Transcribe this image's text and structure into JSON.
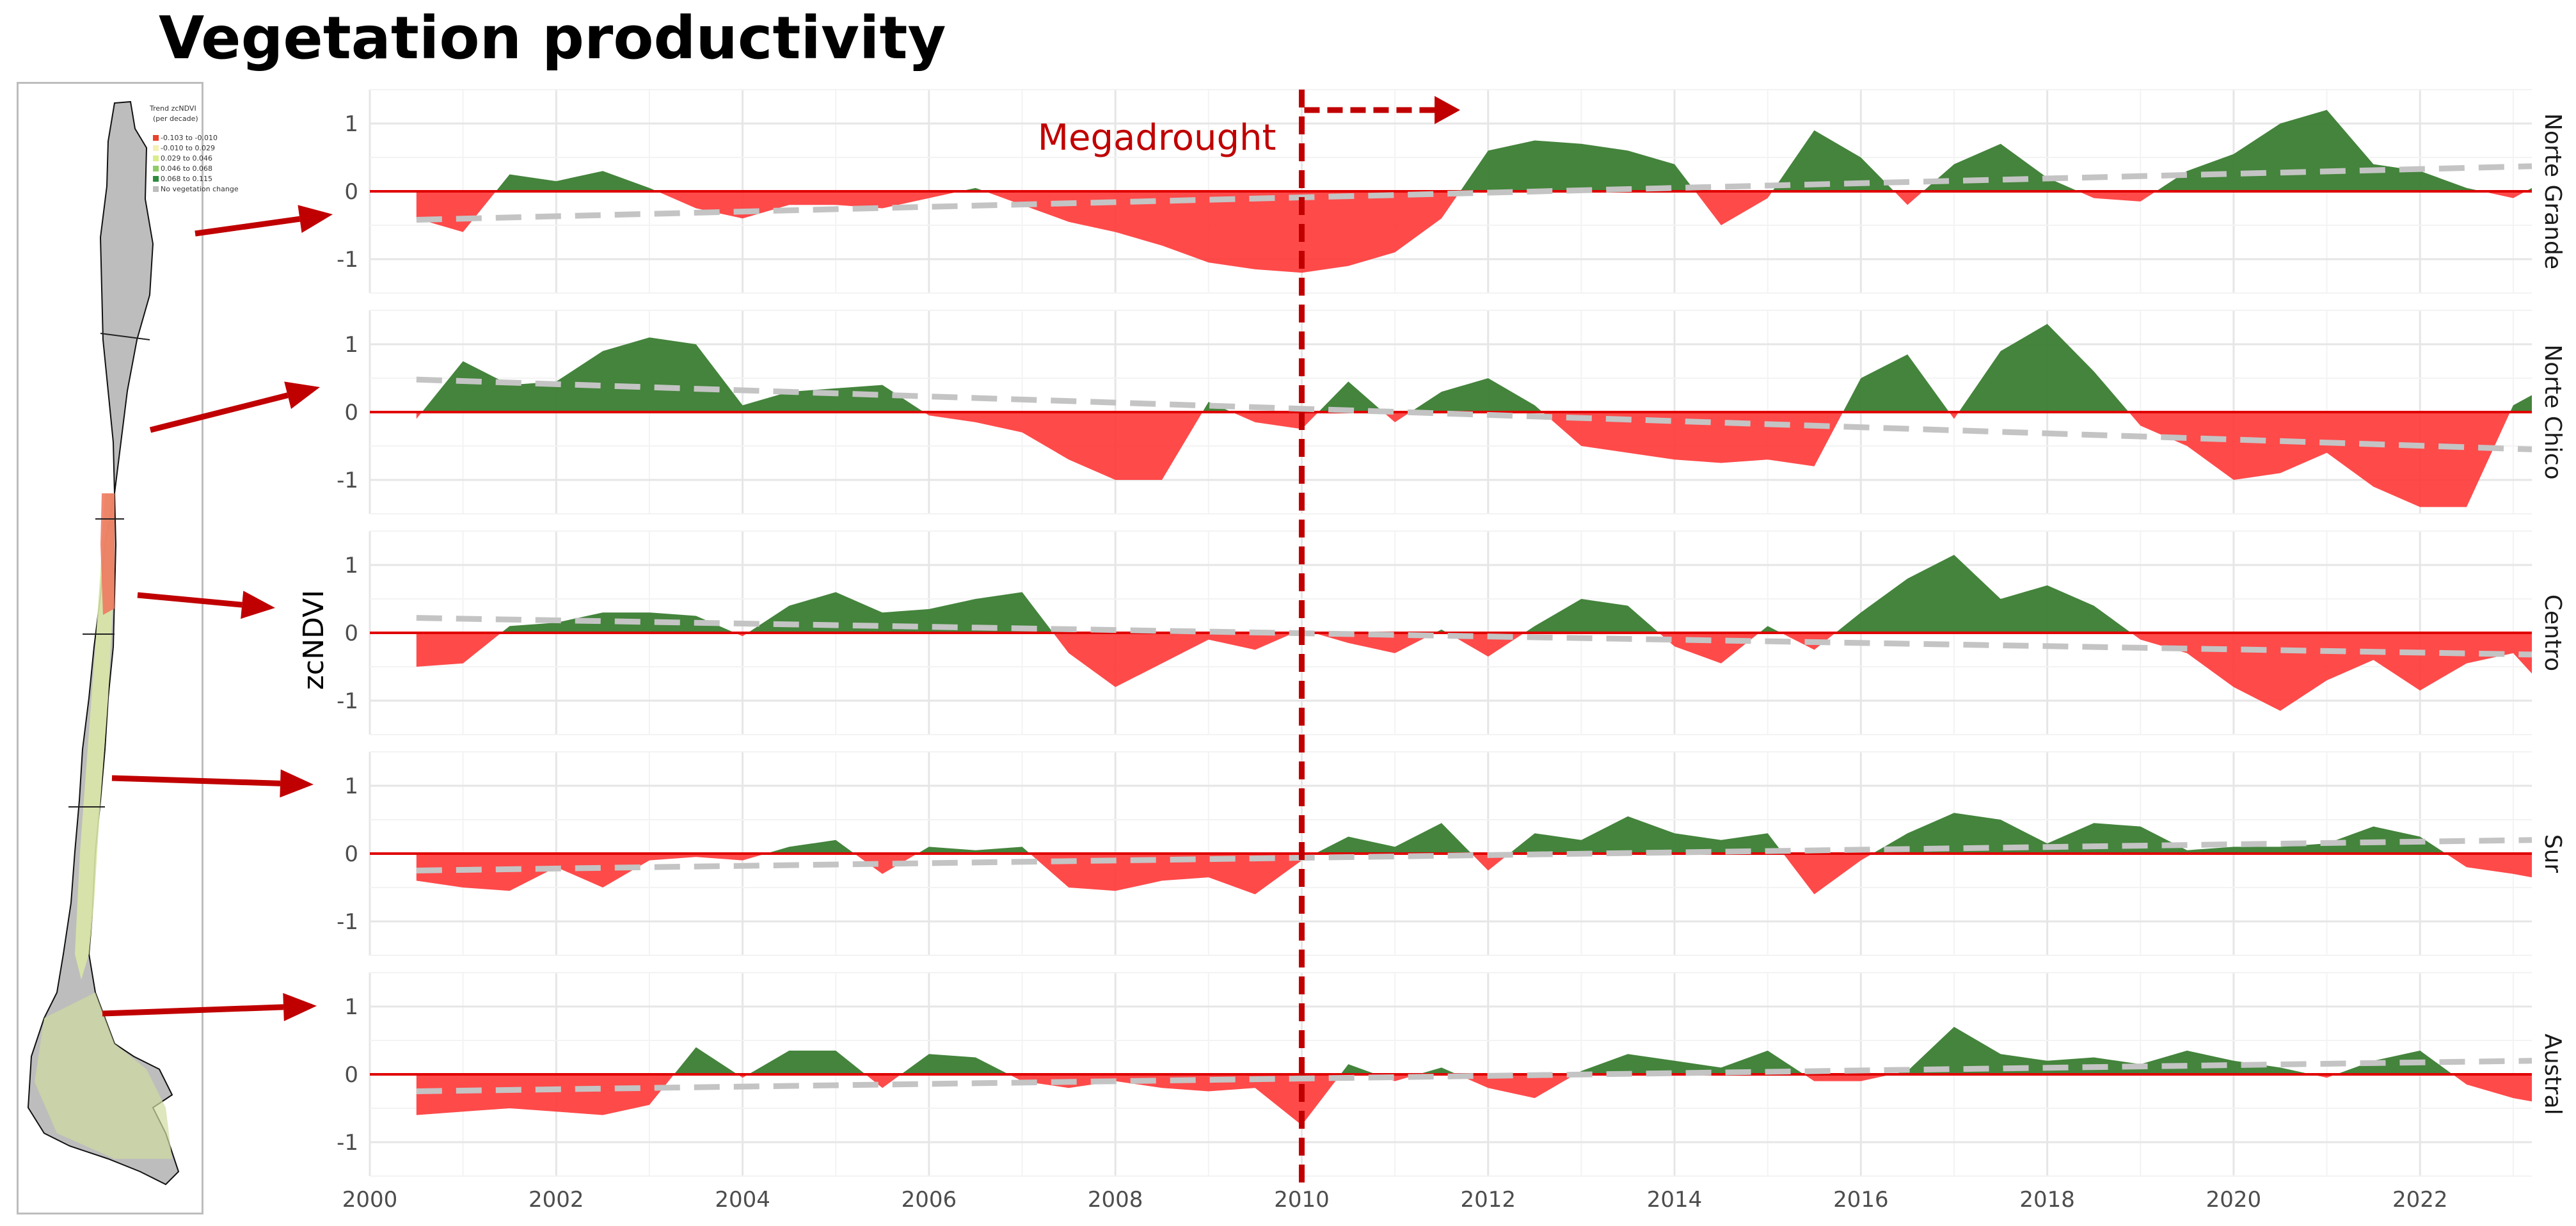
{
  "title": "Vegetation productivity",
  "map": {
    "legend_title_line1": "Trend zcNDVI",
    "legend_title_line2": "(per decade)",
    "legend": [
      {
        "label": "-0.103 to -0.010",
        "color": "#e8432c"
      },
      {
        "label": "-0.010 to 0.029",
        "color": "#f5f0b4"
      },
      {
        "label": "0.029 to 0.046",
        "color": "#d9ec8a"
      },
      {
        "label": "0.046 to 0.068",
        "color": "#8fcb64"
      },
      {
        "label": "0.068 to 0.115",
        "color": "#2e8b3e"
      },
      {
        "label": "No vegetation change",
        "color": "#bdbdbd"
      }
    ]
  },
  "colors": {
    "positive": "#3a7d32",
    "negative": "#ff3b3b",
    "zero_line": "#e00000",
    "trend": "#c4c4c4",
    "annotation": "#c00000",
    "grid": "#ebebeb"
  },
  "chart_data": {
    "type": "area",
    "ylabel": "zcNDVI",
    "xlim": [
      2000,
      2023.2
    ],
    "ylim": [
      -1.5,
      1.5
    ],
    "x_ticks": [
      2000,
      2002,
      2004,
      2006,
      2008,
      2010,
      2012,
      2014,
      2016,
      2018,
      2020,
      2022
    ],
    "y_ticks": [
      -1,
      0,
      1
    ],
    "grid": true,
    "annotation": {
      "text": "Megadrought",
      "x": 2010,
      "arrow_to": 2011.7
    },
    "panels": [
      {
        "name": "Norte Grande",
        "trend": [
          [
            2000.5,
            -0.42
          ],
          [
            2023.2,
            0.37
          ]
        ],
        "x": [
          2000.5,
          2001,
          2001.5,
          2002,
          2002.5,
          2003,
          2003.5,
          2004,
          2004.5,
          2005,
          2005.5,
          2006,
          2006.5,
          2007,
          2007.5,
          2008,
          2008.5,
          2009,
          2009.5,
          2010,
          2010.5,
          2011,
          2011.5,
          2012,
          2012.5,
          2013,
          2013.5,
          2014,
          2014.5,
          2015,
          2015.5,
          2016,
          2016.5,
          2017,
          2017.5,
          2018,
          2018.5,
          2019,
          2019.5,
          2020,
          2020.5,
          2021,
          2021.5,
          2022,
          2022.5,
          2023,
          2023.2
        ],
        "y": [
          -0.4,
          -0.6,
          0.25,
          0.15,
          0.3,
          0.05,
          -0.25,
          -0.4,
          -0.2,
          -0.2,
          -0.25,
          -0.1,
          0.05,
          -0.2,
          -0.45,
          -0.6,
          -0.8,
          -1.05,
          -1.15,
          -1.2,
          -1.1,
          -0.9,
          -0.4,
          0.6,
          0.75,
          0.7,
          0.6,
          0.4,
          -0.5,
          -0.1,
          0.9,
          0.5,
          -0.2,
          0.4,
          0.7,
          0.2,
          -0.1,
          -0.15,
          0.3,
          0.55,
          1.0,
          1.2,
          0.4,
          0.3,
          0.05,
          -0.1,
          0.05
        ]
      },
      {
        "name": "Norte Chico",
        "trend": [
          [
            2000.5,
            0.48
          ],
          [
            2023.2,
            -0.55
          ]
        ],
        "x": [
          2000.5,
          2001,
          2001.5,
          2002,
          2002.5,
          2003,
          2003.5,
          2004,
          2004.5,
          2005,
          2005.5,
          2006,
          2006.5,
          2007,
          2007.5,
          2008,
          2008.5,
          2009,
          2009.5,
          2010,
          2010.5,
          2011,
          2011.5,
          2012,
          2012.5,
          2013,
          2013.5,
          2014,
          2014.5,
          2015,
          2015.5,
          2016,
          2016.5,
          2017,
          2017.5,
          2018,
          2018.5,
          2019,
          2019.5,
          2020,
          2020.5,
          2021,
          2021.5,
          2022,
          2022.5,
          2023,
          2023.2
        ],
        "y": [
          -0.1,
          0.75,
          0.4,
          0.45,
          0.9,
          1.1,
          1.0,
          0.1,
          0.3,
          0.35,
          0.4,
          -0.05,
          -0.15,
          -0.3,
          -0.7,
          -1.0,
          -1.0,
          0.15,
          -0.15,
          -0.25,
          0.45,
          -0.15,
          0.3,
          0.5,
          0.1,
          -0.5,
          -0.6,
          -0.7,
          -0.75,
          -0.7,
          -0.8,
          0.5,
          0.85,
          -0.1,
          0.9,
          1.3,
          0.6,
          -0.2,
          -0.5,
          -1.0,
          -0.9,
          -0.6,
          -1.1,
          -1.4,
          -1.4,
          0.1,
          0.25
        ]
      },
      {
        "name": "Centro",
        "trend": [
          [
            2000.5,
            0.22
          ],
          [
            2023.2,
            -0.32
          ]
        ],
        "x": [
          2000.5,
          2001,
          2001.5,
          2002,
          2002.5,
          2003,
          2003.5,
          2004,
          2004.5,
          2005,
          2005.5,
          2006,
          2006.5,
          2007,
          2007.5,
          2008,
          2008.5,
          2009,
          2009.5,
          2010,
          2010.5,
          2011,
          2011.5,
          2012,
          2012.5,
          2013,
          2013.5,
          2014,
          2014.5,
          2015,
          2015.5,
          2016,
          2016.5,
          2017,
          2017.5,
          2018,
          2018.5,
          2019,
          2019.5,
          2020,
          2020.5,
          2021,
          2021.5,
          2022,
          2022.5,
          2023,
          2023.2
        ],
        "y": [
          -0.5,
          -0.45,
          0.1,
          0.15,
          0.3,
          0.3,
          0.25,
          -0.05,
          0.4,
          0.6,
          0.3,
          0.35,
          0.5,
          0.6,
          -0.3,
          -0.8,
          -0.45,
          -0.1,
          -0.25,
          0.05,
          -0.15,
          -0.3,
          0.05,
          -0.35,
          0.1,
          0.5,
          0.4,
          -0.2,
          -0.45,
          0.1,
          -0.25,
          0.3,
          0.8,
          1.15,
          0.5,
          0.7,
          0.4,
          -0.1,
          -0.3,
          -0.8,
          -1.15,
          -0.7,
          -0.4,
          -0.85,
          -0.45,
          -0.3,
          -0.6
        ]
      },
      {
        "name": "Sur",
        "trend": [
          [
            2000.5,
            -0.25
          ],
          [
            2023.2,
            0.2
          ]
        ],
        "x": [
          2000.5,
          2001,
          2001.5,
          2002,
          2002.5,
          2003,
          2003.5,
          2004,
          2004.5,
          2005,
          2005.5,
          2006,
          2006.5,
          2007,
          2007.5,
          2008,
          2008.5,
          2009,
          2009.5,
          2010,
          2010.5,
          2011,
          2011.5,
          2012,
          2012.5,
          2013,
          2013.5,
          2014,
          2014.5,
          2015,
          2015.5,
          2016,
          2016.5,
          2017,
          2017.5,
          2018,
          2018.5,
          2019,
          2019.5,
          2020,
          2020.5,
          2021,
          2021.5,
          2022,
          2022.5,
          2023,
          2023.2
        ],
        "y": [
          -0.4,
          -0.5,
          -0.55,
          -0.2,
          -0.5,
          -0.1,
          -0.05,
          -0.1,
          0.1,
          0.2,
          -0.3,
          0.1,
          0.05,
          0.1,
          -0.5,
          -0.55,
          -0.4,
          -0.35,
          -0.6,
          -0.1,
          0.25,
          0.1,
          0.45,
          -0.25,
          0.3,
          0.2,
          0.55,
          0.3,
          0.2,
          0.3,
          -0.6,
          -0.1,
          0.3,
          0.6,
          0.5,
          0.15,
          0.45,
          0.4,
          0.05,
          0.1,
          0.1,
          0.15,
          0.4,
          0.25,
          -0.2,
          -0.3,
          -0.35
        ]
      },
      {
        "name": "Austral",
        "trend": [
          [
            2000.5,
            -0.25
          ],
          [
            2023.2,
            0.2
          ]
        ],
        "x": [
          2000.5,
          2001,
          2001.5,
          2002,
          2002.5,
          2003,
          2003.5,
          2004,
          2004.5,
          2005,
          2005.5,
          2006,
          2006.5,
          2007,
          2007.5,
          2008,
          2008.5,
          2009,
          2009.5,
          2010,
          2010.5,
          2011,
          2011.5,
          2012,
          2012.5,
          2013,
          2013.5,
          2014,
          2014.5,
          2015,
          2015.5,
          2016,
          2016.5,
          2017,
          2017.5,
          2018,
          2018.5,
          2019,
          2019.5,
          2020,
          2020.5,
          2021,
          2021.5,
          2022,
          2022.5,
          2023,
          2023.2
        ],
        "y": [
          -0.6,
          -0.55,
          -0.5,
          -0.55,
          -0.6,
          -0.45,
          0.4,
          -0.05,
          0.35,
          0.35,
          -0.2,
          0.3,
          0.25,
          -0.1,
          -0.2,
          -0.1,
          -0.2,
          -0.25,
          -0.2,
          -0.75,
          0.15,
          -0.1,
          0.1,
          -0.2,
          -0.35,
          0.05,
          0.3,
          0.2,
          0.1,
          0.35,
          -0.1,
          -0.1,
          0.05,
          0.7,
          0.3,
          0.2,
          0.25,
          0.15,
          0.35,
          0.2,
          0.1,
          -0.05,
          0.2,
          0.35,
          -0.15,
          -0.35,
          -0.4
        ]
      }
    ]
  }
}
